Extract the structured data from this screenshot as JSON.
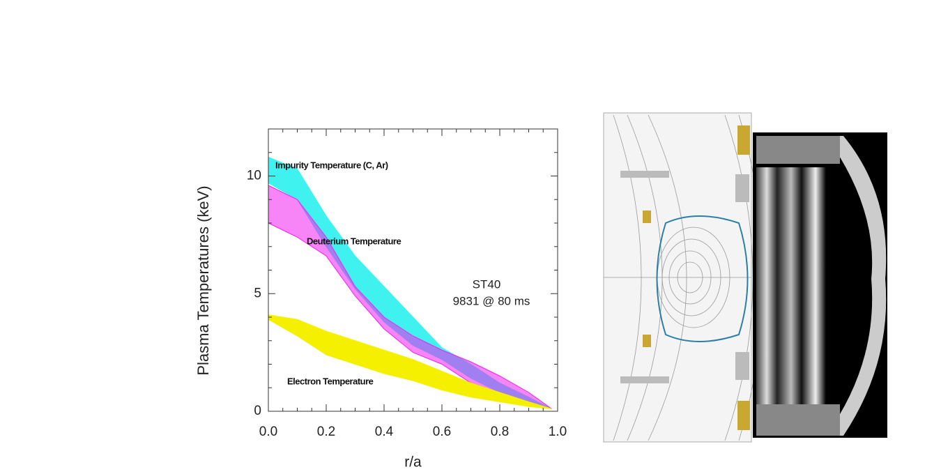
{
  "chart_data": {
    "type": "band",
    "ylabel": "Plasma Temperatures (keV)",
    "xlabel": "r/a",
    "annotations": [
      "ST40",
      "9831 @ 80 ms"
    ],
    "x": [
      0,
      0.1,
      0.2,
      0.3,
      0.4,
      0.5,
      0.6,
      0.7,
      0.8,
      0.9,
      0.98
    ],
    "series": [
      {
        "name": "Impurity Temperature (C, Ar)",
        "color": "#3ff2f0",
        "upper": [
          10.8,
          10.3,
          8.3,
          6.6,
          5.3,
          4.0,
          2.7,
          2.0,
          1.2,
          0.6,
          0.1
        ],
        "lower": [
          9.7,
          9.0,
          7.0,
          5.2,
          3.8,
          2.8,
          2.2,
          1.4,
          0.8,
          0.4,
          0.1
        ]
      },
      {
        "name": "Deuterium Temperature",
        "color": "#f020f0",
        "upper": [
          9.6,
          9.0,
          7.4,
          5.3,
          4.0,
          3.2,
          2.6,
          2.1,
          1.5,
          0.8,
          0.1
        ],
        "lower": [
          8.0,
          7.4,
          6.6,
          4.9,
          3.5,
          2.5,
          2.0,
          1.2,
          0.6,
          0.3,
          0.1
        ]
      },
      {
        "name": "Electron Temperature",
        "color": "#f4f000",
        "upper": [
          4.1,
          3.9,
          3.4,
          3.0,
          2.6,
          2.2,
          1.7,
          1.2,
          0.8,
          0.4,
          0.1
        ],
        "lower": [
          3.9,
          3.2,
          2.4,
          2.0,
          1.6,
          1.3,
          0.9,
          0.6,
          0.4,
          0.2,
          0.1
        ]
      }
    ],
    "xlim": [
      0,
      1
    ],
    "ylim": [
      0,
      12
    ],
    "xticks": [
      {
        "value": 0,
        "label": "0.0"
      },
      {
        "value": 0.2,
        "label": "0.2"
      },
      {
        "value": 0.4,
        "label": "0.4"
      },
      {
        "value": 0.6,
        "label": "0.6"
      },
      {
        "value": 0.8,
        "label": "0.8"
      },
      {
        "value": 1,
        "label": "1.0"
      }
    ],
    "yticks": [
      0,
      5,
      10
    ],
    "xminorticks": [
      0.05,
      0.1,
      0.15,
      0.25,
      0.3,
      0.35,
      0.45,
      0.5,
      0.55,
      0.65,
      0.7,
      0.75,
      0.85,
      0.9,
      0.95
    ],
    "yminorticks": [
      1,
      2,
      3,
      4,
      6,
      7,
      8,
      9,
      11,
      12
    ]
  }
}
